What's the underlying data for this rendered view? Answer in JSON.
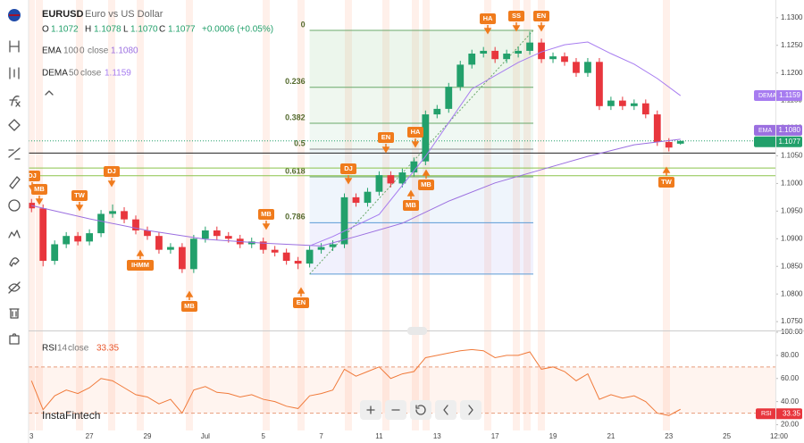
{
  "chart_data": [
    {
      "type": "candlestick",
      "title": "EURUSD",
      "subtitle": "Euro vs US Dollar",
      "ohlc_legend": [
        [
          "O",
          "1.1072"
        ],
        [
          "H",
          "1.1078"
        ],
        [
          "L",
          "1.1070"
        ],
        [
          "C",
          "1.1077"
        ]
      ],
      "change": "+0.0006 (+0.05%)",
      "xlim": [
        -0.25,
        64.5
      ],
      "xticks": [
        {
          "value": 0,
          "label": "3"
        },
        {
          "value": 5,
          "label": "27"
        },
        {
          "value": 10,
          "label": "29"
        },
        {
          "value": 15,
          "label": "Jul"
        },
        {
          "value": 20,
          "label": "5"
        },
        {
          "value": 25,
          "label": "7"
        },
        {
          "value": 30,
          "label": "11"
        },
        {
          "value": 35,
          "label": "13"
        },
        {
          "value": 40,
          "label": "17"
        },
        {
          "value": 45,
          "label": "19"
        },
        {
          "value": 50,
          "label": "21"
        },
        {
          "value": 55,
          "label": "23"
        },
        {
          "value": 60,
          "label": "25"
        },
        {
          "value": 64.5,
          "label": "12:00"
        }
      ],
      "ylim": [
        1.0734,
        1.1332
      ],
      "yticks": [
        {
          "value": 1.075,
          "label": "1.0750"
        },
        {
          "value": 1.08,
          "label": "1.0800"
        },
        {
          "value": 1.085,
          "label": "1.0850"
        },
        {
          "value": 1.09,
          "label": "1.0900"
        },
        {
          "value": 1.095,
          "label": "1.0950"
        },
        {
          "value": 1.1,
          "label": "1.1000"
        },
        {
          "value": 1.105,
          "label": "1.1050"
        },
        {
          "value": 1.11,
          "label": "1.1100"
        },
        {
          "value": 1.115,
          "label": "1.1150"
        },
        {
          "value": 1.12,
          "label": "1.1200"
        },
        {
          "value": 1.125,
          "label": "1.1250"
        },
        {
          "value": 1.13,
          "label": "1.1300"
        }
      ],
      "series": [
        {
          "name": "EURUSD",
          "color_up": "#22a06b",
          "color_down": "#e8363d",
          "open": [
            1.0965,
            1.0955,
            1.086,
            1.089,
            1.0905,
            1.0895,
            1.091,
            1.0945,
            1.095,
            1.0935,
            1.0915,
            1.0905,
            1.088,
            1.0885,
            1.0845,
            1.09,
            1.0915,
            1.0905,
            1.09,
            1.089,
            1.0895,
            1.088,
            1.0875,
            1.086,
            1.0855,
            1.088,
            1.0885,
            1.089,
            1.0975,
            1.0965,
            1.0985,
            1.1015,
            1.1,
            1.102,
            1.104,
            1.1125,
            1.1135,
            1.1175,
            1.1215,
            1.1235,
            1.124,
            1.1225,
            1.1235,
            1.124,
            1.1255,
            1.1225,
            1.123,
            1.122,
            1.12,
            1.122,
            1.114,
            1.115,
            1.114,
            1.1145,
            1.1125,
            1.1075,
            1.1072
          ],
          "high": [
            1.0972,
            1.0962,
            1.0897,
            1.0912,
            1.0912,
            1.0917,
            1.0952,
            1.0962,
            1.0957,
            1.0942,
            1.0922,
            1.0912,
            1.0892,
            1.0892,
            1.0907,
            1.0922,
            1.0922,
            1.0912,
            1.0907,
            1.0902,
            1.0902,
            1.0887,
            1.0882,
            1.0867,
            1.0887,
            1.0892,
            1.0897,
            1.0982,
            1.0982,
            1.0992,
            1.1022,
            1.1022,
            1.1027,
            1.1047,
            1.1132,
            1.1142,
            1.1182,
            1.1222,
            1.1242,
            1.1247,
            1.1247,
            1.1242,
            1.1247,
            1.1275,
            1.1262,
            1.1237,
            1.1237,
            1.1227,
            1.1227,
            1.1227,
            1.1157,
            1.1157,
            1.1152,
            1.1152,
            1.1132,
            1.1082,
            1.1078
          ],
          "low": [
            1.0948,
            1.085,
            1.0853,
            1.0883,
            1.0888,
            1.0888,
            1.0903,
            1.0938,
            1.0928,
            1.0908,
            1.0898,
            1.0873,
            1.0873,
            1.0838,
            1.0838,
            1.0893,
            1.0898,
            1.0893,
            1.0883,
            1.0883,
            1.0873,
            1.0868,
            1.0853,
            1.0845,
            1.0848,
            1.0873,
            1.0878,
            1.0883,
            1.0958,
            1.0958,
            1.0978,
            1.0993,
            1.0993,
            1.1013,
            1.1033,
            1.1118,
            1.1128,
            1.1168,
            1.1208,
            1.1228,
            1.1218,
            1.1218,
            1.1228,
            1.1233,
            1.1218,
            1.1218,
            1.1213,
            1.1193,
            1.1193,
            1.1133,
            1.1133,
            1.1133,
            1.1133,
            1.1118,
            1.1068,
            1.1058,
            1.107
          ],
          "close": [
            1.0955,
            1.086,
            1.089,
            1.0905,
            1.0895,
            1.091,
            1.0945,
            1.095,
            1.0935,
            1.0915,
            1.0905,
            1.088,
            1.0885,
            1.0845,
            1.09,
            1.0915,
            1.0905,
            1.09,
            1.089,
            1.0895,
            1.088,
            1.0875,
            1.086,
            1.0855,
            1.088,
            1.0885,
            1.089,
            1.0975,
            1.0965,
            1.0985,
            1.1015,
            1.1,
            1.102,
            1.104,
            1.1125,
            1.1135,
            1.1175,
            1.1215,
            1.1235,
            1.124,
            1.1225,
            1.1235,
            1.124,
            1.1255,
            1.1225,
            1.123,
            1.122,
            1.12,
            1.122,
            1.114,
            1.115,
            1.114,
            1.1145,
            1.1125,
            1.1075,
            1.1065,
            1.1077
          ]
        }
      ],
      "lines": [
        {
          "name": "EMA",
          "params": [
            "100",
            "0",
            "close"
          ],
          "last": "1.1080",
          "color": "#9b6fe0",
          "x": [
            0,
            5,
            10,
            15,
            20,
            25,
            28,
            32,
            36,
            40,
            44,
            48,
            52,
            56
          ],
          "values": [
            1.096,
            1.0936,
            1.0915,
            1.0899,
            1.0892,
            1.0887,
            1.0904,
            1.0928,
            1.0968,
            1.1001,
            1.1025,
            1.1049,
            1.107,
            1.108
          ]
        },
        {
          "name": "DEMA",
          "params": [
            "50",
            "close"
          ],
          "last": "1.1159",
          "color": "#a77cf0",
          "x": [
            24,
            26,
            30,
            34,
            38,
            42,
            44,
            46,
            48,
            50,
            52,
            54,
            56
          ],
          "values": [
            1.0887,
            1.0904,
            1.0944,
            1.1049,
            1.1171,
            1.1219,
            1.1238,
            1.1251,
            1.1256,
            1.1235,
            1.1216,
            1.119,
            1.1159
          ]
        }
      ],
      "fibonacci": {
        "levels": [
          0,
          0.236,
          0.382,
          0.5,
          0.618,
          0.786,
          null
        ],
        "prices": [
          1.1277,
          1.1174,
          1.1109,
          1.1062,
          1.1012,
          1.0929,
          1.0836
        ],
        "colors": [
          "#6aa86a",
          "#6aa86a",
          "#6aa86a",
          "#8a8a8a",
          "#6aa86a",
          "#5b9bd5",
          "#5b9bd5"
        ]
      },
      "horizontal_lines": [
        {
          "price": 1.1055,
          "color": "#222222"
        },
        {
          "price": 1.1028,
          "color": "#8bc34a"
        },
        {
          "price": 1.1014,
          "color": "#8bc34a"
        }
      ],
      "pattern_labels": [
        "DJ",
        "MB",
        "TW",
        "DJ",
        "IHMM",
        "MB",
        "MB",
        "EN",
        "DJ",
        "EN",
        "HA",
        "MB",
        "MB",
        "HA",
        "SS",
        "EN",
        "TW"
      ],
      "watermark": "InstaFintech"
    },
    {
      "type": "line",
      "xlim": [
        -0.25,
        64.5
      ],
      "ylim": [
        15,
        100
      ],
      "yticks": [
        {
          "value": 100,
          "label": "100.00"
        },
        {
          "value": 80,
          "label": "80.00"
        },
        {
          "value": 60,
          "label": "60.00"
        },
        {
          "value": 40,
          "label": "40.00"
        },
        {
          "value": 20,
          "label": "20.00"
        }
      ],
      "levels": [
        70,
        30
      ],
      "series": [
        {
          "name": "RSI",
          "params": [
            "14",
            "close"
          ],
          "last": "33.35",
          "color": "#f07a3a",
          "values": [
            58,
            33,
            45,
            50,
            47,
            52,
            60,
            58,
            52,
            46,
            44,
            38,
            42,
            30,
            50,
            53,
            48,
            47,
            44,
            46,
            42,
            40,
            36,
            34,
            45,
            47,
            50,
            68,
            62,
            66,
            70,
            60,
            64,
            66,
            78,
            80,
            82,
            84,
            85,
            84,
            78,
            80,
            80,
            83,
            68,
            70,
            66,
            58,
            64,
            42,
            46,
            43,
            45,
            40,
            30,
            28,
            33.35
          ]
        }
      ]
    }
  ]
}
